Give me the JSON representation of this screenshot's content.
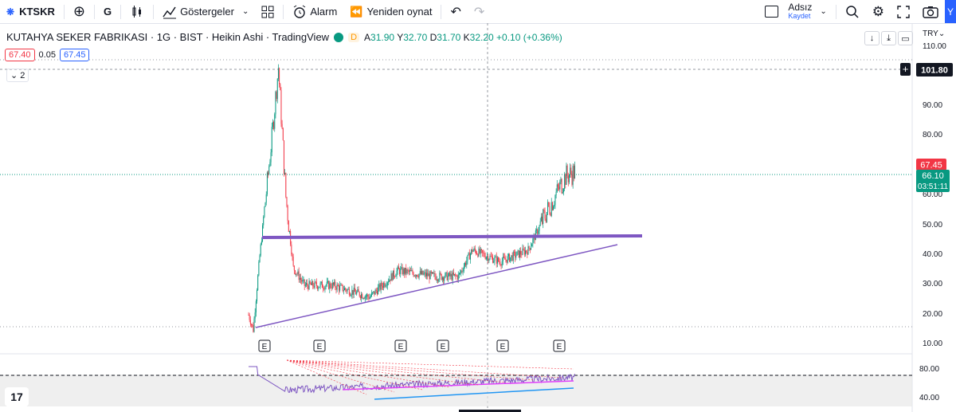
{
  "toolbar": {
    "symbol": "KTSKR",
    "add_label": "⊕",
    "interval": "G",
    "indicators": "Göstergeler",
    "alarm": "Alarm",
    "replay": "Yeniden oynat",
    "account_name": "Adsız",
    "account_save": "Kaydet",
    "right_tab": "Y"
  },
  "legend": {
    "title": "KUTAHYA SEKER FABRIKASI · 1G · BIST · Heikin Ashi · TradingView",
    "d_badge": "D",
    "open_label": "A",
    "open": "31.90",
    "high_label": "Y",
    "high": "32.70",
    "low_label": "D",
    "low": "31.70",
    "close_label": "K",
    "close": "32.20",
    "change": "+0.10 (+0.36%)"
  },
  "order": {
    "sell": "67.40",
    "spread": "0.05",
    "buy": "67.45"
  },
  "collapse_label": "2",
  "currency": "TRY",
  "axis": {
    "ticks": [
      "110.00",
      "90.00",
      "80.00",
      "60.00",
      "50.00",
      "40.00",
      "30.00",
      "20.00",
      "10.00"
    ],
    "crosshair_price": "101.80",
    "last_price": "67.45",
    "current_price": "66.10",
    "countdown": "03:51:11",
    "osc_ticks": [
      "80.00",
      "40.00"
    ]
  },
  "earnings_marker": "E",
  "colors": {
    "up": "#089981",
    "down": "#f23645",
    "accent": "#2962ff",
    "trend": "#7e57c2"
  },
  "chart_data": {
    "type": "candlestick",
    "ylim": [
      10,
      110
    ],
    "description_points": [
      {
        "x": 0,
        "y": 20
      },
      {
        "x": 5,
        "y": 15
      },
      {
        "x": 12,
        "y": 40
      },
      {
        "x": 25,
        "y": 80
      },
      {
        "x": 32,
        "y": 104
      },
      {
        "x": 40,
        "y": 60
      },
      {
        "x": 48,
        "y": 36
      },
      {
        "x": 60,
        "y": 30
      },
      {
        "x": 90,
        "y": 30
      },
      {
        "x": 130,
        "y": 26
      },
      {
        "x": 160,
        "y": 35
      },
      {
        "x": 200,
        "y": 33
      },
      {
        "x": 225,
        "y": 33
      },
      {
        "x": 240,
        "y": 42
      },
      {
        "x": 270,
        "y": 38
      },
      {
        "x": 300,
        "y": 42
      },
      {
        "x": 320,
        "y": 55
      },
      {
        "x": 340,
        "y": 67
      }
    ]
  }
}
